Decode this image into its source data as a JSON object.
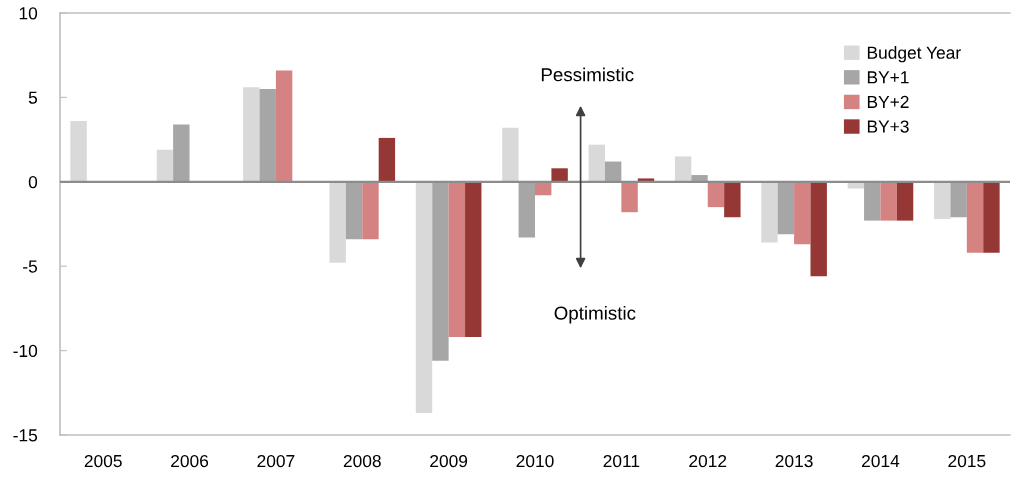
{
  "chart_data": {
    "type": "bar",
    "categories": [
      "2005",
      "2006",
      "2007",
      "2008",
      "2009",
      "2010",
      "2011",
      "2012",
      "2013",
      "2014",
      "2015"
    ],
    "series": [
      {
        "name": "Budget Year",
        "color": "#d9d9d9",
        "values": [
          3.6,
          1.9,
          5.6,
          -4.8,
          -13.7,
          3.2,
          2.2,
          1.5,
          -3.6,
          -0.4,
          -2.2
        ]
      },
      {
        "name": "BY+1",
        "color": "#a6a6a6",
        "values": [
          null,
          3.4,
          5.5,
          -3.4,
          -10.6,
          -3.3,
          1.2,
          0.4,
          -3.1,
          -2.3,
          -2.1
        ]
      },
      {
        "name": "BY+2",
        "color": "#d48282",
        "values": [
          null,
          null,
          6.6,
          -3.4,
          -9.2,
          -0.8,
          -1.8,
          -1.5,
          -3.7,
          -2.3,
          -4.2
        ]
      },
      {
        "name": "BY+3",
        "color": "#953735",
        "values": [
          null,
          null,
          null,
          2.6,
          -9.2,
          0.8,
          0.2,
          -2.1,
          -5.6,
          -2.3,
          -4.2
        ]
      }
    ],
    "ylim": [
      -15,
      10
    ],
    "yticks": [
      -15,
      -10,
      -5,
      0,
      5,
      10
    ],
    "grid": false,
    "legend": "top right",
    "ref_lines": [
      {
        "axis": "y",
        "value": 0,
        "color": "#8c8c8c"
      }
    ],
    "annotations": [
      "Pessimistic",
      "Optimistic"
    ]
  }
}
